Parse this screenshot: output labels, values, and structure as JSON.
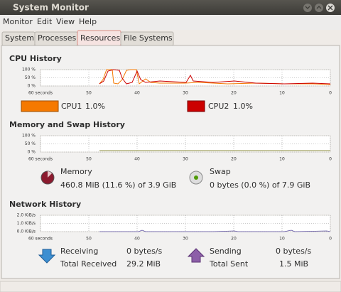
{
  "window": {
    "title": "System Monitor"
  },
  "menu": [
    "Monitor",
    "Edit",
    "View",
    "Help"
  ],
  "tabs": [
    "System",
    "Processes",
    "Resources",
    "File Systems"
  ],
  "cpu": {
    "title": "CPU History",
    "y_labels": [
      "100 %",
      "50 %",
      "0 %"
    ],
    "x_labels": [
      "60 seconds",
      "50",
      "40",
      "30",
      "20",
      "10",
      "0"
    ],
    "legend": [
      {
        "name": "CPU1",
        "value": "1.0%"
      },
      {
        "name": "CPU2",
        "value": "1.0%"
      }
    ]
  },
  "memory": {
    "title": "Memory and Swap History",
    "y_labels": [
      "100 %",
      "50 %",
      "0 %"
    ],
    "x_labels": [
      "60 seconds",
      "50",
      "40",
      "30",
      "20",
      "10",
      "0"
    ],
    "memory": {
      "label": "Memory",
      "value": "460.8 MiB (11.6 %) of 3.9 GiB"
    },
    "swap": {
      "label": "Swap",
      "value": "0 bytes (0.0 %) of 7.9 GiB"
    }
  },
  "network": {
    "title": "Network History",
    "y_labels": [
      "2.0 KiB/s",
      "1.0 KiB/s",
      "0.0 KiB/s"
    ],
    "x_labels": [
      "60 seconds",
      "50",
      "40",
      "30",
      "20",
      "10",
      "0"
    ],
    "receiving": {
      "label": "Receiving",
      "value": "0 bytes/s"
    },
    "total_received": {
      "label": "Total Received",
      "value": "29.2 MiB"
    },
    "sending": {
      "label": "Sending",
      "value": "0 bytes/s"
    },
    "total_sent": {
      "label": "Total Sent",
      "value": "1.5 MiB"
    }
  }
}
